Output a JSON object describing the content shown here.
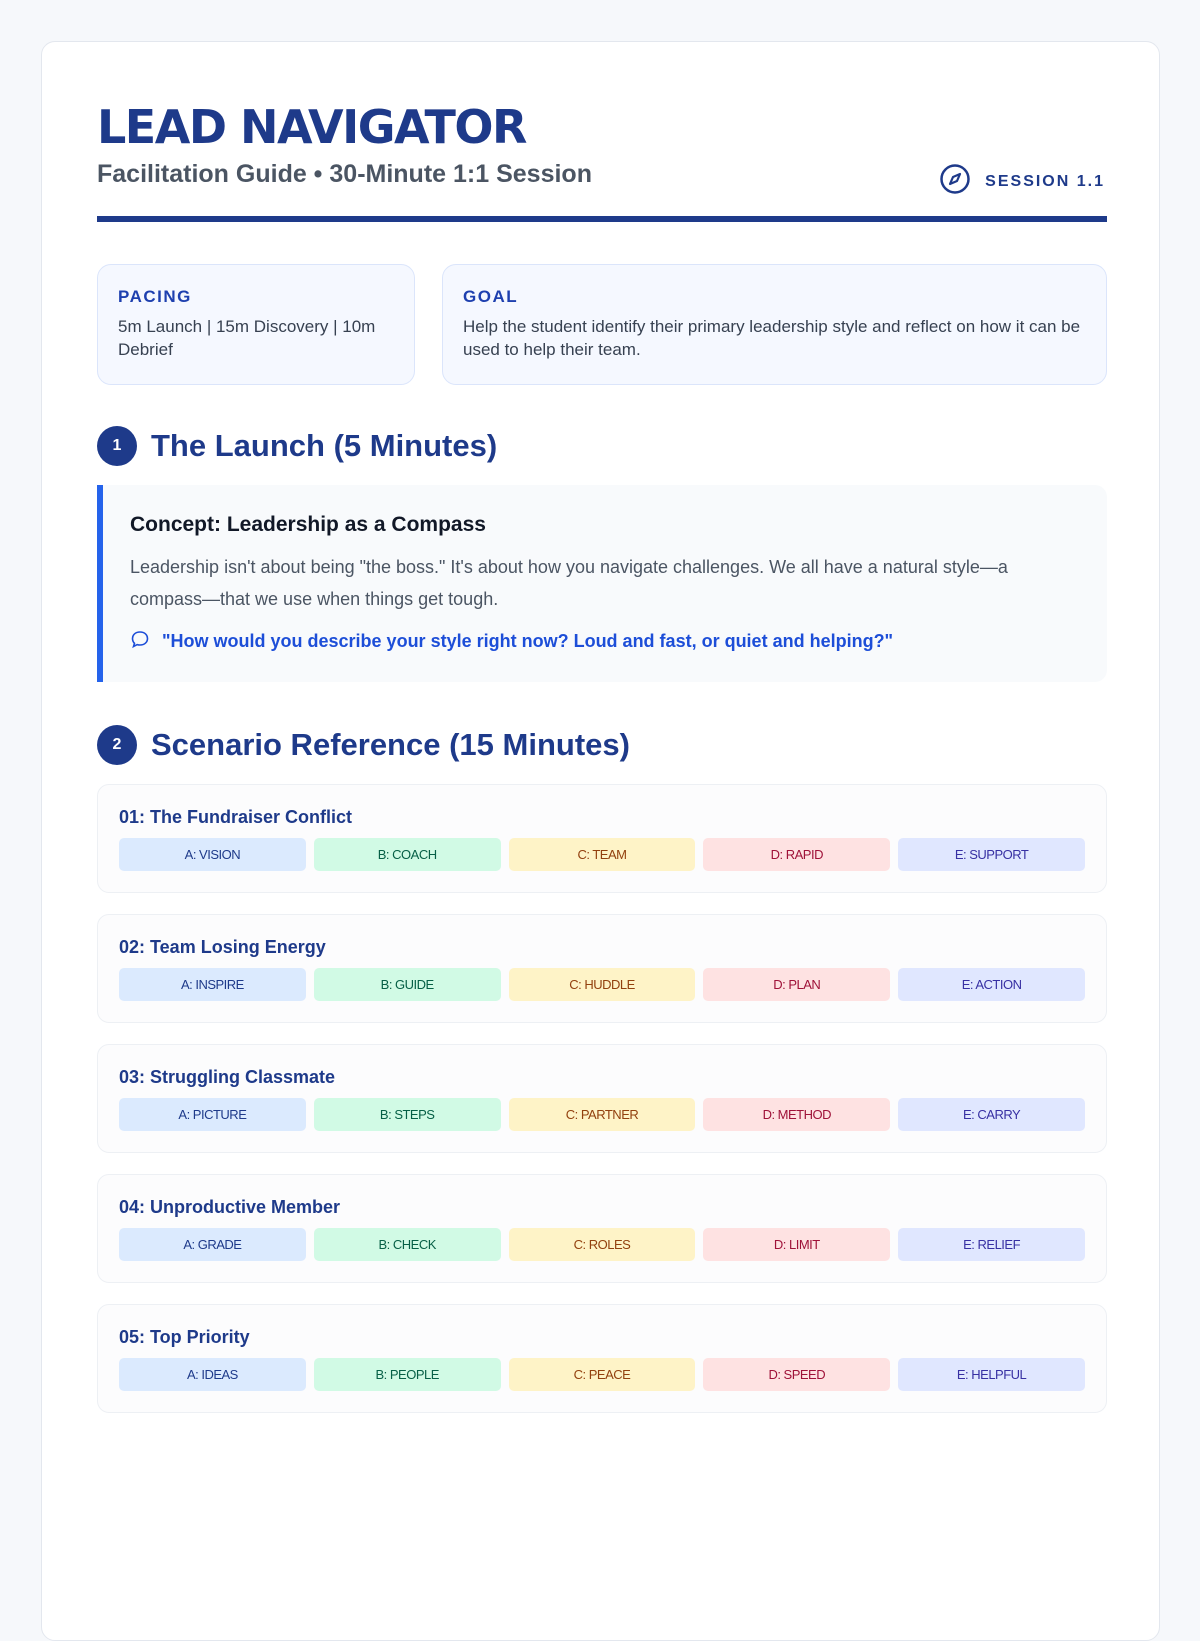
{
  "header": {
    "title": "LEAD NAVIGATOR",
    "subtitle": "Facilitation Guide • 30-Minute 1:1 Session",
    "session": "SESSION 1.1",
    "session_icon": "compass-icon"
  },
  "pacing": {
    "label": "PACING",
    "text": "5m Launch | 15m Discovery | 10m Debrief"
  },
  "goal": {
    "label": "GOAL",
    "text": "Help the student identify their primary leadership style and reflect on how it can be used to help their team."
  },
  "section1": {
    "number": "1",
    "title": "The Launch (5 Minutes)",
    "concept_title": "Concept: Leadership as a Compass",
    "concept_text": "Leadership isn't about being \"the boss.\" It's about how you navigate challenges. We all have a natural style—a compass—that we use when things get tough.",
    "quote": "\"How would you describe your style right now? Loud and fast, or quiet and helping?\"",
    "quote_icon": "speech-bubble-icon"
  },
  "section2": {
    "number": "2",
    "title": "Scenario Reference (15 Minutes)"
  },
  "chip_colors": [
    {
      "bg": "#dbeafe",
      "fg": "#1e3a8a"
    },
    {
      "bg": "#d1fae5",
      "fg": "#065f46"
    },
    {
      "bg": "#fef3c7",
      "fg": "#92400e"
    },
    {
      "bg": "#fee2e2",
      "fg": "#9f1239"
    },
    {
      "bg": "#e0e7ff",
      "fg": "#3730a3"
    }
  ],
  "scenarios": [
    {
      "title": "01: The Fundraiser Conflict",
      "options": [
        "A: VISION",
        "B: COACH",
        "C: TEAM",
        "D: RAPID",
        "E: SUPPORT"
      ]
    },
    {
      "title": "02: Team Losing Energy",
      "options": [
        "A: INSPIRE",
        "B: GUIDE",
        "C: HUDDLE",
        "D: PLAN",
        "E: ACTION"
      ]
    },
    {
      "title": "03: Struggling Classmate",
      "options": [
        "A: PICTURE",
        "B: STEPS",
        "C: PARTNER",
        "D: METHOD",
        "E: CARRY"
      ]
    },
    {
      "title": "04: Unproductive Member",
      "options": [
        "A: GRADE",
        "B: CHECK",
        "C: ROLES",
        "D: LIMIT",
        "E: RELIEF"
      ]
    },
    {
      "title": "05: Top Priority",
      "options": [
        "A: IDEAS",
        "B: PEOPLE",
        "C: PEACE",
        "D: SPEED",
        "E: HELPFUL"
      ]
    }
  ]
}
